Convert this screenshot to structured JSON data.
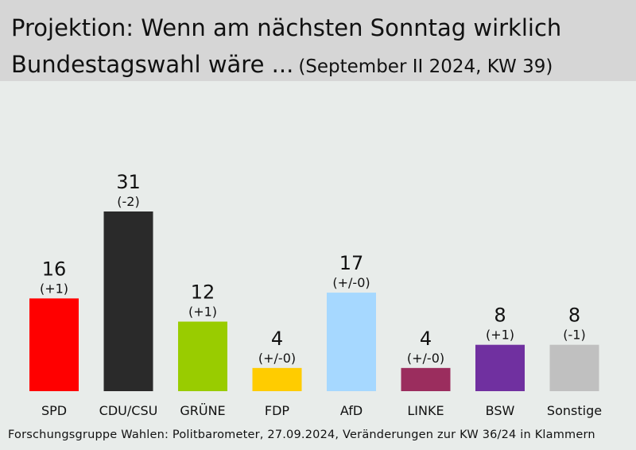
{
  "header": {
    "title_line1": "Projektion: Wenn am nächsten Sonntag wirklich",
    "title_line2": "Bundestagswahl wäre ...",
    "subtitle": "(September II 2024, KW 39)"
  },
  "footer": {
    "source": "Forschungsgruppe Wahlen: Politbarometer, 27.09.2024, Veränderungen zur KW 36/24 in Klammern"
  },
  "chart_data": {
    "type": "bar",
    "title": "Projektion: Wenn am nächsten Sonntag wirklich Bundestagswahl wäre ... (September II 2024, KW 39)",
    "categories": [
      "SPD",
      "CDU/CSU",
      "GRÜNE",
      "FDP",
      "AfD",
      "LINKE",
      "BSW",
      "Sonstige"
    ],
    "values": [
      16,
      31,
      12,
      4,
      17,
      4,
      8,
      8
    ],
    "changes": [
      "(+1)",
      "(-2)",
      "(+1)",
      "(+/-0)",
      "(+/-0)",
      "(+/-0)",
      "(+1)",
      "(-1)"
    ],
    "colors": [
      "#ff0000",
      "#2a2a2a",
      "#99cc00",
      "#ffcc00",
      "#a6d8ff",
      "#9b2d5e",
      "#7030a0",
      "#c0c0c0"
    ],
    "ylim": [
      0,
      31
    ],
    "grid": false,
    "legend": "none"
  }
}
